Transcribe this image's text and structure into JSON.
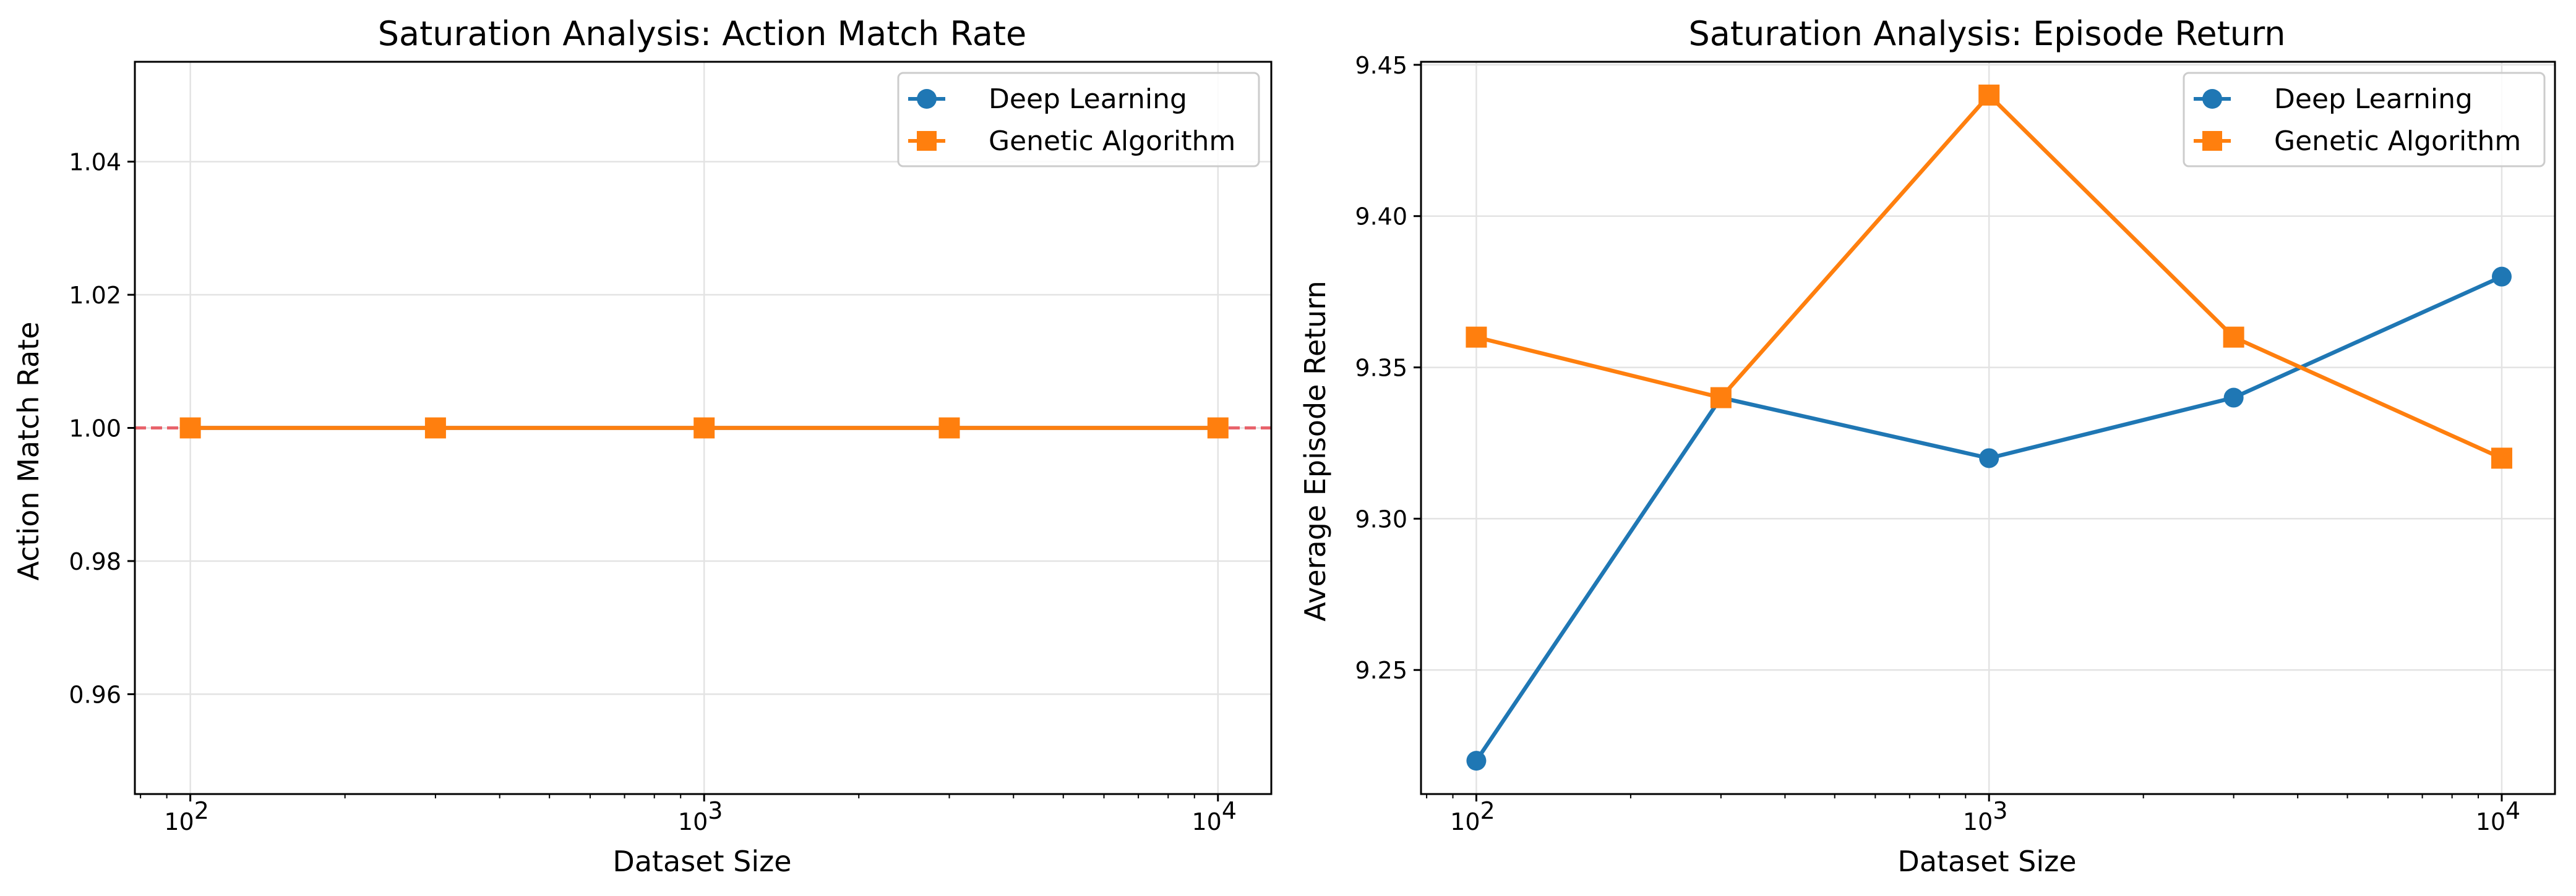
{
  "chart_data": [
    {
      "type": "line",
      "title": "Saturation Analysis: Action Match Rate",
      "xlabel": "Dataset Size",
      "ylabel": "Action Match Rate",
      "xscale": "log",
      "xlim": [
        78,
        12700
      ],
      "ylim": [
        0.945,
        1.055
      ],
      "yticks": [
        0.96,
        0.98,
        1.0,
        1.02,
        1.04
      ],
      "ytick_labels": [
        "0.96",
        "0.98",
        "1.00",
        "1.02",
        "1.04"
      ],
      "xticks": [
        100,
        1000,
        10000
      ],
      "xtick_labels": [
        {
          "base": "10",
          "exp": "2"
        },
        {
          "base": "10",
          "exp": "3"
        },
        {
          "base": "10",
          "exp": "4"
        }
      ],
      "grid": true,
      "legend": "top-right",
      "reference_line": {
        "y": 1.0,
        "color": "#e8636b",
        "style": "dashed"
      },
      "x": [
        100,
        300,
        1000,
        3000,
        10000
      ],
      "series": [
        {
          "name": "Deep Learning",
          "color": "#1f77b4",
          "marker": "circle",
          "values": [
            1.0,
            1.0,
            1.0,
            1.0,
            1.0
          ]
        },
        {
          "name": "Genetic Algorithm",
          "color": "#ff7f0e",
          "marker": "square",
          "values": [
            1.0,
            1.0,
            1.0,
            1.0,
            1.0
          ]
        }
      ]
    },
    {
      "type": "line",
      "title": "Saturation Analysis: Episode Return",
      "xlabel": "Dataset Size",
      "ylabel": "Average Episode Return",
      "xscale": "log",
      "xlim": [
        78,
        12700
      ],
      "ylim": [
        9.209,
        9.451
      ],
      "yticks": [
        9.25,
        9.3,
        9.35,
        9.4,
        9.45
      ],
      "ytick_labels": [
        "9.25",
        "9.30",
        "9.35",
        "9.40",
        "9.45"
      ],
      "xticks": [
        100,
        1000,
        10000
      ],
      "xtick_labels": [
        {
          "base": "10",
          "exp": "2"
        },
        {
          "base": "10",
          "exp": "3"
        },
        {
          "base": "10",
          "exp": "4"
        }
      ],
      "grid": true,
      "legend": "top-right",
      "x": [
        100,
        300,
        1000,
        3000,
        10000
      ],
      "series": [
        {
          "name": "Deep Learning",
          "color": "#1f77b4",
          "marker": "circle",
          "values": [
            9.22,
            9.34,
            9.32,
            9.34,
            9.38
          ]
        },
        {
          "name": "Genetic Algorithm",
          "color": "#ff7f0e",
          "marker": "square",
          "values": [
            9.36,
            9.34,
            9.44,
            9.36,
            9.32
          ]
        }
      ]
    }
  ]
}
